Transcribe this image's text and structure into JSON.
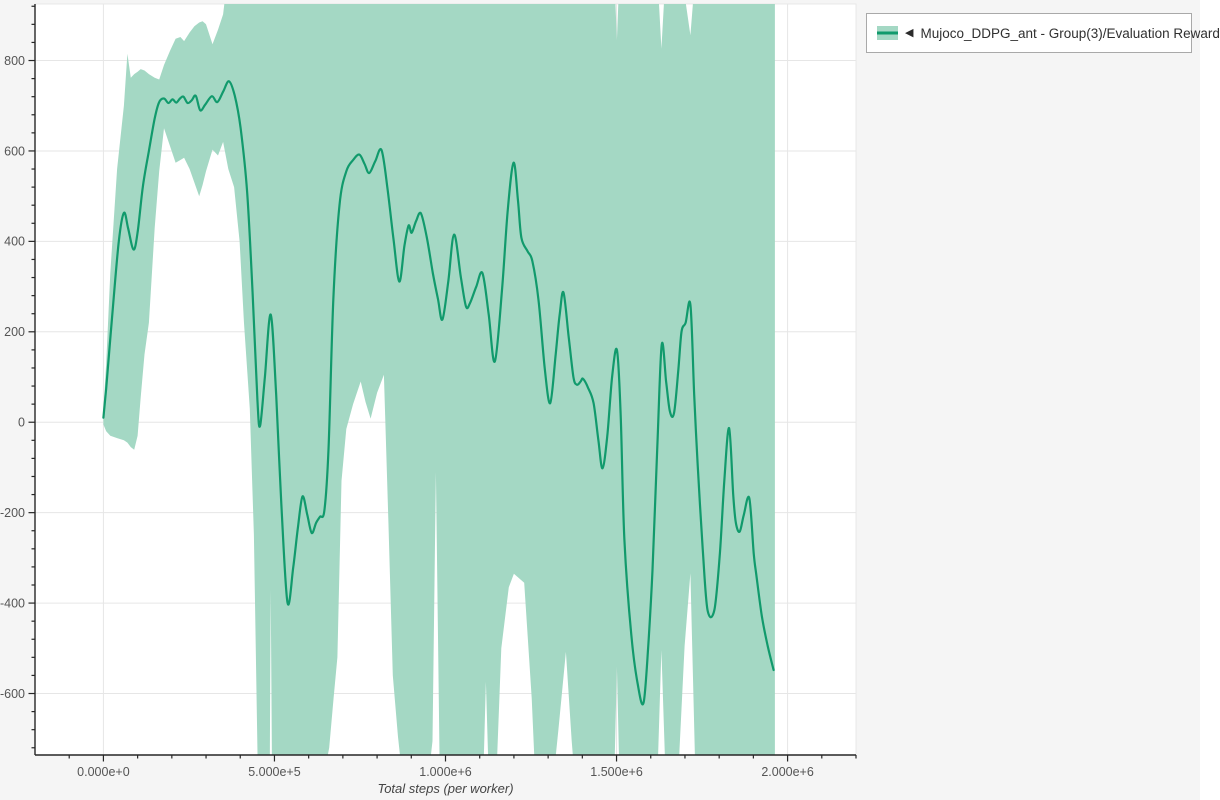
{
  "page": {
    "background": "#f5f5f5",
    "plot_background": "#ffffff"
  },
  "colors": {
    "band": "#a4d8c4",
    "line": "#119a6c",
    "grid": "#e6e6e6",
    "axis": "#262626",
    "tick_label": "#555555",
    "axis_title": "#444444",
    "legend_border": "#a9a9a9"
  },
  "legend": {
    "collapse_icon": "◀",
    "label": "Mujoco_DDPG_ant - Group(3)/Evaluation Reward"
  },
  "chart_data": {
    "type": "line",
    "title": "",
    "xlabel": "Total steps (per worker)",
    "ylabel": "",
    "x_range": [
      -200000,
      2200000
    ],
    "y_range": [
      -736,
      925
    ],
    "grid": "major",
    "legend_position": "top-right-outside",
    "x_ticks": {
      "values": [
        0,
        500000,
        1000000,
        1500000,
        2000000
      ],
      "labels": [
        "0.000e+0",
        "5.000e+5",
        "1.000e+6",
        "1.500e+6",
        "2.000e+6"
      ],
      "minor_step": 100000
    },
    "y_ticks": {
      "values": [
        800,
        600,
        400,
        200,
        0,
        -200,
        -400,
        -600
      ],
      "labels": [
        "800",
        "600",
        "400",
        "200",
        "0",
        "-200",
        "-400",
        "-600"
      ],
      "minor_step": 40
    },
    "series": [
      {
        "name": "Mujoco_DDPG_ant - Group(3)/Evaluation Reward",
        "color": "#119a6c",
        "band_color": "#a4d8c4",
        "mean": [
          [
            0,
            10
          ],
          [
            8000,
            75
          ],
          [
            25000,
            230
          ],
          [
            45000,
            400
          ],
          [
            60000,
            463
          ],
          [
            72000,
            430
          ],
          [
            88000,
            382
          ],
          [
            100000,
            420
          ],
          [
            115000,
            520
          ],
          [
            133000,
            600
          ],
          [
            150000,
            672
          ],
          [
            163000,
            708
          ],
          [
            177000,
            716
          ],
          [
            190000,
            706
          ],
          [
            202000,
            714
          ],
          [
            213000,
            707
          ],
          [
            224000,
            716
          ],
          [
            234000,
            720
          ],
          [
            246000,
            706
          ],
          [
            258000,
            712
          ],
          [
            270000,
            722
          ],
          [
            283000,
            690
          ],
          [
            298000,
            703
          ],
          [
            317000,
            721
          ],
          [
            333000,
            708
          ],
          [
            350000,
            731
          ],
          [
            367000,
            754
          ],
          [
            384000,
            722
          ],
          [
            401000,
            651
          ],
          [
            420000,
            510
          ],
          [
            436000,
            286
          ],
          [
            450000,
            50
          ],
          [
            458000,
            -8
          ],
          [
            472000,
            100
          ],
          [
            489000,
            238
          ],
          [
            505000,
            60
          ],
          [
            520000,
            -180
          ],
          [
            538000,
            -399
          ],
          [
            555000,
            -320
          ],
          [
            569000,
            -230
          ],
          [
            582000,
            -164
          ],
          [
            596000,
            -205
          ],
          [
            609000,
            -245
          ],
          [
            622000,
            -222
          ],
          [
            633000,
            -209
          ],
          [
            646000,
            -195
          ],
          [
            658000,
            -60
          ],
          [
            672000,
            270
          ],
          [
            690000,
            480
          ],
          [
            710000,
            555
          ],
          [
            730000,
            580
          ],
          [
            748000,
            592
          ],
          [
            763000,
            572
          ],
          [
            777000,
            551
          ],
          [
            795000,
            578
          ],
          [
            813000,
            602
          ],
          [
            830000,
            520
          ],
          [
            848000,
            405
          ],
          [
            865000,
            311
          ],
          [
            880000,
            390
          ],
          [
            892000,
            435
          ],
          [
            901000,
            419
          ],
          [
            914000,
            445
          ],
          [
            928000,
            462
          ],
          [
            945000,
            410
          ],
          [
            963000,
            330
          ],
          [
            978000,
            272
          ],
          [
            991000,
            227
          ],
          [
            1008000,
            310
          ],
          [
            1025000,
            415
          ],
          [
            1045000,
            320
          ],
          [
            1060000,
            256
          ],
          [
            1072000,
            264
          ],
          [
            1090000,
            300
          ],
          [
            1108000,
            330
          ],
          [
            1126000,
            240
          ],
          [
            1144000,
            134
          ],
          [
            1165000,
            290
          ],
          [
            1182000,
            470
          ],
          [
            1199000,
            574
          ],
          [
            1212000,
            490
          ],
          [
            1222000,
            408
          ],
          [
            1240000,
            378
          ],
          [
            1254000,
            356
          ],
          [
            1272000,
            270
          ],
          [
            1290000,
            120
          ],
          [
            1306000,
            42
          ],
          [
            1322000,
            150
          ],
          [
            1334000,
            240
          ],
          [
            1345000,
            287
          ],
          [
            1360000,
            190
          ],
          [
            1374000,
            100
          ],
          [
            1384000,
            83
          ],
          [
            1395000,
            90
          ],
          [
            1402000,
            96
          ],
          [
            1417000,
            76
          ],
          [
            1433000,
            42
          ],
          [
            1447000,
            -40
          ],
          [
            1459000,
            -102
          ],
          [
            1473000,
            -30
          ],
          [
            1487000,
            100
          ],
          [
            1501000,
            160
          ],
          [
            1512000,
            20
          ],
          [
            1523000,
            -260
          ],
          [
            1543000,
            -470
          ],
          [
            1562000,
            -580
          ],
          [
            1579000,
            -620
          ],
          [
            1593000,
            -490
          ],
          [
            1605000,
            -327
          ],
          [
            1619000,
            -60
          ],
          [
            1632000,
            171
          ],
          [
            1645000,
            90
          ],
          [
            1656000,
            24
          ],
          [
            1668000,
            20
          ],
          [
            1680000,
            110
          ],
          [
            1690000,
            200
          ],
          [
            1702000,
            220
          ],
          [
            1716000,
            260
          ],
          [
            1727000,
            60
          ],
          [
            1737000,
            -91
          ],
          [
            1752000,
            -280
          ],
          [
            1766000,
            -415
          ],
          [
            1786000,
            -415
          ],
          [
            1802000,
            -290
          ],
          [
            1815000,
            -130
          ],
          [
            1829000,
            -13
          ],
          [
            1841000,
            -160
          ],
          [
            1849000,
            -223
          ],
          [
            1860000,
            -242
          ],
          [
            1872000,
            -205
          ],
          [
            1888000,
            -168
          ],
          [
            1901000,
            -290
          ],
          [
            1908000,
            -334
          ],
          [
            1925000,
            -430
          ],
          [
            1942000,
            -495
          ],
          [
            1959000,
            -548
          ]
        ],
        "band": [
          [
            0,
            -5,
            30
          ],
          [
            8000,
            -20,
            130
          ],
          [
            20000,
            -30,
            330
          ],
          [
            40000,
            -35,
            560
          ],
          [
            60000,
            -40,
            700
          ],
          [
            70000,
            -45,
            815
          ],
          [
            80000,
            -55,
            762
          ],
          [
            90000,
            -61,
            770
          ],
          [
            100000,
            -30,
            775
          ],
          [
            109000,
            55,
            781
          ],
          [
            120000,
            150,
            778
          ],
          [
            133000,
            220,
            770
          ],
          [
            150000,
            430,
            762
          ],
          [
            163000,
            555,
            758
          ],
          [
            177000,
            650,
            790
          ],
          [
            195000,
            610,
            822
          ],
          [
            211000,
            574,
            848
          ],
          [
            225000,
            580,
            852
          ],
          [
            236000,
            585,
            843
          ],
          [
            252000,
            560,
            862
          ],
          [
            266000,
            530,
            876
          ],
          [
            280000,
            500,
            884
          ],
          [
            290000,
            525,
            887
          ],
          [
            300000,
            555,
            880
          ],
          [
            319000,
            603,
            836
          ],
          [
            335000,
            590,
            868
          ],
          [
            350000,
            620,
            902
          ],
          [
            365000,
            560,
            1000
          ],
          [
            382000,
            520,
            1000
          ],
          [
            398000,
            400,
            1000
          ],
          [
            411000,
            219,
            1000
          ],
          [
            428000,
            30,
            1000
          ],
          [
            440000,
            -250,
            1000
          ],
          [
            452000,
            -800,
            1000
          ],
          [
            486000,
            -800,
            1000
          ],
          [
            489000,
            -370,
            1000
          ],
          [
            493000,
            -800,
            1000
          ],
          [
            640000,
            -800,
            1000
          ],
          [
            660000,
            -720,
            1000
          ],
          [
            673000,
            -610,
            1000
          ],
          [
            684000,
            -520,
            1000
          ],
          [
            696000,
            -130,
            1000
          ],
          [
            710000,
            -15,
            1000
          ],
          [
            730000,
            40,
            1000
          ],
          [
            752000,
            90,
            1000
          ],
          [
            766000,
            45,
            1000
          ],
          [
            781000,
            8,
            1000
          ],
          [
            800000,
            65,
            1000
          ],
          [
            820000,
            105,
            1000
          ],
          [
            833000,
            -220,
            1000
          ],
          [
            846000,
            -560,
            1000
          ],
          [
            861000,
            -696,
            1000
          ],
          [
            876000,
            -800,
            1000
          ],
          [
            948000,
            -800,
            1000
          ],
          [
            962000,
            -705,
            1000
          ],
          [
            972000,
            -110,
            1000
          ],
          [
            983000,
            -770,
            1000
          ],
          [
            1000000,
            -800,
            1000
          ],
          [
            1110000,
            -800,
            1000
          ],
          [
            1118000,
            -574,
            1000
          ],
          [
            1127000,
            -800,
            1000
          ],
          [
            1148000,
            -800,
            1000
          ],
          [
            1163000,
            -500,
            1000
          ],
          [
            1185000,
            -365,
            1000
          ],
          [
            1200000,
            -335,
            1000
          ],
          [
            1230000,
            -355,
            1000
          ],
          [
            1252000,
            -610,
            1000
          ],
          [
            1263000,
            -800,
            1000
          ],
          [
            1314000,
            -800,
            1000
          ],
          [
            1330000,
            -680,
            1000
          ],
          [
            1352000,
            -508,
            1000
          ],
          [
            1369000,
            -705,
            1000
          ],
          [
            1379000,
            -800,
            1000
          ],
          [
            1493000,
            -800,
            1000
          ],
          [
            1501000,
            -541,
            845
          ],
          [
            1509000,
            -800,
            1000
          ],
          [
            1619000,
            -800,
            1000
          ],
          [
            1631000,
            -504,
            826
          ],
          [
            1644000,
            -800,
            1000
          ],
          [
            1679000,
            -800,
            1000
          ],
          [
            1699000,
            -495,
            945
          ],
          [
            1716000,
            -334,
            856
          ],
          [
            1731000,
            -800,
            1000
          ],
          [
            1963000,
            -800,
            1000
          ]
        ]
      }
    ]
  }
}
